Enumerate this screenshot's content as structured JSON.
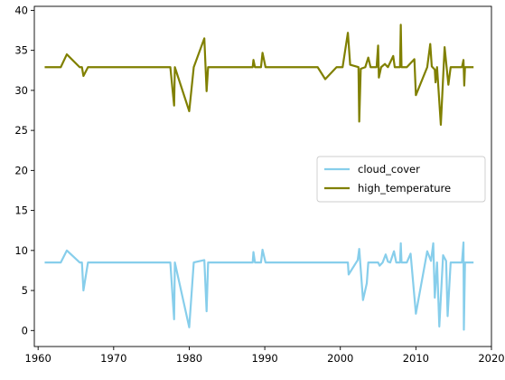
{
  "chart_data": {
    "type": "line",
    "title": "",
    "xlabel": "",
    "ylabel": "",
    "xlim": [
      1959.5,
      2020.0
    ],
    "ylim": [
      -2.0,
      40.5
    ],
    "grid": false,
    "legend_position": "center-right",
    "x_ticks": [
      1960,
      1970,
      1980,
      1990,
      2000,
      2010,
      2020
    ],
    "x_tick_labels": [
      "1960",
      "1970",
      "1980",
      "1990",
      "2000",
      "2010",
      "2020"
    ],
    "y_ticks": [
      0,
      5,
      10,
      15,
      20,
      25,
      30,
      35,
      40
    ],
    "y_tick_labels": [
      "0",
      "5",
      "10",
      "15",
      "20",
      "25",
      "30",
      "35",
      "40"
    ],
    "series": [
      {
        "name": "cloud_cover",
        "color": "#87ceeb",
        "points": [
          [
            1961.0,
            8.5
          ],
          [
            1963.0,
            8.5
          ],
          [
            1963.8,
            10.0
          ],
          [
            1965.5,
            8.5
          ],
          [
            1965.8,
            8.5
          ],
          [
            1966.0,
            5.0
          ],
          [
            1966.6,
            8.5
          ],
          [
            1977.5,
            8.5
          ],
          [
            1978.0,
            1.4
          ],
          [
            1978.1,
            8.5
          ],
          [
            1980.0,
            0.4
          ],
          [
            1980.6,
            8.5
          ],
          [
            1982.0,
            8.8
          ],
          [
            1982.3,
            2.4
          ],
          [
            1982.5,
            8.5
          ],
          [
            1988.4,
            8.5
          ],
          [
            1988.5,
            9.8
          ],
          [
            1988.7,
            8.5
          ],
          [
            1989.5,
            8.5
          ],
          [
            1989.7,
            10.1
          ],
          [
            1990.1,
            8.5
          ],
          [
            2001.0,
            8.5
          ],
          [
            2001.1,
            7.0
          ],
          [
            2002.3,
            8.8
          ],
          [
            2002.5,
            10.2
          ],
          [
            2003.0,
            3.8
          ],
          [
            2003.5,
            5.9
          ],
          [
            2003.7,
            8.5
          ],
          [
            2005.0,
            8.5
          ],
          [
            2005.2,
            8.1
          ],
          [
            2005.6,
            8.5
          ],
          [
            2006.0,
            9.5
          ],
          [
            2006.3,
            8.6
          ],
          [
            2006.6,
            8.5
          ],
          [
            2007.1,
            9.9
          ],
          [
            2007.4,
            8.5
          ],
          [
            2007.9,
            8.5
          ],
          [
            2008.0,
            10.9
          ],
          [
            2008.1,
            8.5
          ],
          [
            2008.8,
            8.5
          ],
          [
            2009.3,
            9.6
          ],
          [
            2010.0,
            2.1
          ],
          [
            2011.5,
            9.9
          ],
          [
            2012.0,
            8.7
          ],
          [
            2012.3,
            10.9
          ],
          [
            2012.5,
            4.1
          ],
          [
            2012.8,
            8.5
          ],
          [
            2013.1,
            0.5
          ],
          [
            2013.6,
            9.4
          ],
          [
            2014.0,
            8.7
          ],
          [
            2014.2,
            1.8
          ],
          [
            2014.6,
            8.5
          ],
          [
            2016.1,
            8.5
          ],
          [
            2016.3,
            11.0
          ],
          [
            2016.35,
            0.1
          ],
          [
            2016.5,
            8.5
          ],
          [
            2017.5,
            8.5
          ]
        ]
      },
      {
        "name": "high_temperature",
        "color": "#808000",
        "points": [
          [
            1961.0,
            32.9
          ],
          [
            1963.0,
            32.9
          ],
          [
            1963.8,
            34.5
          ],
          [
            1965.5,
            32.9
          ],
          [
            1965.8,
            32.9
          ],
          [
            1966.0,
            31.8
          ],
          [
            1966.6,
            32.9
          ],
          [
            1977.5,
            32.9
          ],
          [
            1978.0,
            28.1
          ],
          [
            1978.1,
            32.9
          ],
          [
            1980.0,
            27.4
          ],
          [
            1980.6,
            32.9
          ],
          [
            1982.0,
            36.5
          ],
          [
            1982.3,
            29.9
          ],
          [
            1982.5,
            32.9
          ],
          [
            1988.4,
            32.9
          ],
          [
            1988.5,
            33.8
          ],
          [
            1988.7,
            32.9
          ],
          [
            1989.5,
            32.9
          ],
          [
            1989.7,
            34.7
          ],
          [
            1990.1,
            32.9
          ],
          [
            1997.0,
            32.9
          ],
          [
            1998.0,
            31.4
          ],
          [
            1999.5,
            32.9
          ],
          [
            2000.3,
            32.9
          ],
          [
            2001.0,
            37.2
          ],
          [
            2001.3,
            33.2
          ],
          [
            2002.4,
            32.9
          ],
          [
            2002.5,
            26.1
          ],
          [
            2002.7,
            32.7
          ],
          [
            2003.3,
            32.9
          ],
          [
            2003.7,
            34.1
          ],
          [
            2004.0,
            32.9
          ],
          [
            2004.8,
            32.9
          ],
          [
            2005.0,
            35.6
          ],
          [
            2005.1,
            31.6
          ],
          [
            2005.4,
            32.9
          ],
          [
            2005.9,
            33.3
          ],
          [
            2006.3,
            32.9
          ],
          [
            2007.0,
            34.3
          ],
          [
            2007.2,
            32.9
          ],
          [
            2007.9,
            32.9
          ],
          [
            2008.0,
            38.2
          ],
          [
            2008.1,
            32.9
          ],
          [
            2008.8,
            32.9
          ],
          [
            2009.8,
            33.9
          ],
          [
            2010.0,
            29.4
          ],
          [
            2011.5,
            32.9
          ],
          [
            2011.9,
            35.8
          ],
          [
            2012.1,
            33.0
          ],
          [
            2012.5,
            32.6
          ],
          [
            2012.6,
            31.0
          ],
          [
            2012.8,
            32.9
          ],
          [
            2013.3,
            25.7
          ],
          [
            2013.8,
            35.4
          ],
          [
            2014.3,
            30.7
          ],
          [
            2014.6,
            32.9
          ],
          [
            2016.1,
            32.9
          ],
          [
            2016.3,
            33.8
          ],
          [
            2016.4,
            30.6
          ],
          [
            2016.5,
            32.9
          ],
          [
            2017.5,
            32.9
          ]
        ]
      }
    ]
  }
}
